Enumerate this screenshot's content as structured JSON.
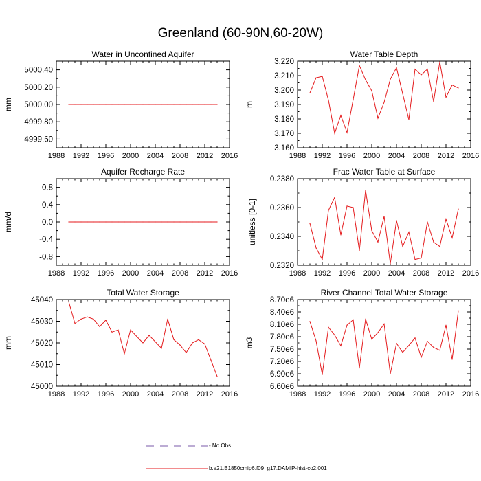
{
  "title": "Greenland (60-90N,60-20W)",
  "colors": {
    "series": "#e41a1c",
    "obs": "#7a5aa8",
    "axis": "#000000"
  },
  "legend": {
    "obs_label": "No Obs",
    "model_label": "b.e21.B1850cmip6.f09_g17.DAMIP-hist-co2.001"
  },
  "chart_data": [
    {
      "type": "line",
      "title": "Water in Unconfined Aquifer",
      "xlabel": "",
      "ylabel": "mm",
      "xlim": [
        1988,
        2016
      ],
      "ylim": [
        4999.5,
        5000.5
      ],
      "xticks": [
        1988,
        1992,
        1996,
        2000,
        2004,
        2008,
        2012,
        2016
      ],
      "yticks": [
        4999.6,
        4999.8,
        5000.0,
        5000.2,
        5000.4
      ],
      "ytick_labels": [
        "4999.60",
        "4999.80",
        "5000.00",
        "5000.20",
        "5000.40"
      ],
      "x": [
        1990,
        1991,
        1992,
        1993,
        1994,
        1995,
        1996,
        1997,
        1998,
        1999,
        2000,
        2001,
        2002,
        2003,
        2004,
        2005,
        2006,
        2007,
        2008,
        2009,
        2010,
        2011,
        2012,
        2013,
        2014
      ],
      "series": [
        {
          "values": [
            5000,
            5000,
            5000,
            5000,
            5000,
            5000,
            5000,
            5000,
            5000,
            5000,
            5000,
            5000,
            5000,
            5000,
            5000,
            5000,
            5000,
            5000,
            5000,
            5000,
            5000,
            5000,
            5000,
            5000,
            5000
          ]
        }
      ]
    },
    {
      "type": "line",
      "title": "Water Table Depth",
      "xlabel": "",
      "ylabel": "m",
      "xlim": [
        1988,
        2016
      ],
      "ylim": [
        3.16,
        3.22
      ],
      "xticks": [
        1988,
        1992,
        1996,
        2000,
        2004,
        2008,
        2012,
        2016
      ],
      "yticks": [
        3.16,
        3.17,
        3.18,
        3.19,
        3.2,
        3.21,
        3.22
      ],
      "ytick_labels": [
        "3.160",
        "3.170",
        "3.180",
        "3.190",
        "3.200",
        "3.210",
        "3.220"
      ],
      "x": [
        1990,
        1991,
        1992,
        1993,
        1994,
        1995,
        1996,
        1997,
        1998,
        1999,
        2000,
        2001,
        2002,
        2003,
        2004,
        2005,
        2006,
        2007,
        2008,
        2009,
        2010,
        2011,
        2012,
        2013,
        2014
      ],
      "series": [
        {
          "values": [
            3.198,
            3.2085,
            3.2095,
            3.193,
            3.17,
            3.1825,
            3.1705,
            3.1935,
            3.217,
            3.207,
            3.1995,
            3.1805,
            3.1915,
            3.2075,
            3.2155,
            3.1975,
            3.1795,
            3.2145,
            3.2105,
            3.2145,
            3.192,
            3.2195,
            3.195,
            3.2035,
            3.2015
          ]
        }
      ]
    },
    {
      "type": "line",
      "title": "Aquifer Recharge Rate",
      "xlabel": "",
      "ylabel": "mm/d",
      "xlim": [
        1988,
        2016
      ],
      "ylim": [
        -1.0,
        1.0
      ],
      "xticks": [
        1988,
        1992,
        1996,
        2000,
        2004,
        2008,
        2012,
        2016
      ],
      "yticks": [
        -0.8,
        -0.4,
        0.0,
        0.4,
        0.8
      ],
      "ytick_labels": [
        "-0.8",
        "-0.4",
        "0.0",
        "0.4",
        "0.8"
      ],
      "x": [
        1990,
        1991,
        1992,
        1993,
        1994,
        1995,
        1996,
        1997,
        1998,
        1999,
        2000,
        2001,
        2002,
        2003,
        2004,
        2005,
        2006,
        2007,
        2008,
        2009,
        2010,
        2011,
        2012,
        2013,
        2014
      ],
      "series": [
        {
          "values": [
            0,
            0,
            0,
            0,
            0,
            0,
            0,
            0,
            0,
            0,
            0,
            0,
            0,
            0,
            0,
            0,
            0,
            0,
            0,
            0,
            0,
            0,
            0,
            0,
            0
          ]
        }
      ]
    },
    {
      "type": "line",
      "title": "Frac Water Table at Surface",
      "xlabel": "",
      "ylabel": "unitless [0-1]",
      "xlim": [
        1988,
        2016
      ],
      "ylim": [
        0.232,
        0.238
      ],
      "xticks": [
        1988,
        1992,
        1996,
        2000,
        2004,
        2008,
        2012,
        2016
      ],
      "yticks": [
        0.232,
        0.234,
        0.236,
        0.238
      ],
      "ytick_labels": [
        "0.2320",
        "0.2340",
        "0.2360",
        "0.2380"
      ],
      "x": [
        1990,
        1991,
        1992,
        1993,
        1994,
        1995,
        1996,
        1997,
        1998,
        1999,
        2000,
        2001,
        2002,
        2003,
        2004,
        2005,
        2006,
        2007,
        2008,
        2009,
        2010,
        2011,
        2012,
        2013,
        2014
      ],
      "series": [
        {
          "values": [
            0.2349,
            0.2332,
            0.2324,
            0.2358,
            0.2367,
            0.2341,
            0.2361,
            0.236,
            0.233,
            0.2372,
            0.2344,
            0.2336,
            0.2354,
            0.2321,
            0.2351,
            0.2333,
            0.2343,
            0.2324,
            0.2325,
            0.235,
            0.2336,
            0.2333,
            0.2352,
            0.2339,
            0.2359
          ]
        }
      ]
    },
    {
      "type": "line",
      "title": "Total Water Storage",
      "xlabel": "",
      "ylabel": "mm",
      "xlim": [
        1988,
        2016
      ],
      "ylim": [
        45000,
        45040
      ],
      "xticks": [
        1988,
        1992,
        1996,
        2000,
        2004,
        2008,
        2012,
        2016
      ],
      "yticks": [
        45000,
        45010,
        45020,
        45030,
        45040
      ],
      "ytick_labels": [
        "45000",
        "45010",
        "45020",
        "45030",
        "45040"
      ],
      "x": [
        1990,
        1991,
        1992,
        1993,
        1994,
        1995,
        1996,
        1997,
        1998,
        1999,
        2000,
        2001,
        2002,
        2003,
        2004,
        2005,
        2006,
        2007,
        2008,
        2009,
        2010,
        2011,
        2012,
        2013,
        2014
      ],
      "series": [
        {
          "values": [
            45039,
            45029,
            45031,
            45032,
            45031,
            45027.5,
            45030.5,
            45025,
            45026,
            45015,
            45026,
            45023,
            45020,
            45023.5,
            45020.5,
            45017.5,
            45031,
            45021.5,
            45019,
            45015.5,
            45020,
            45021.5,
            45019.5,
            45012,
            45004.5
          ]
        }
      ]
    },
    {
      "type": "line",
      "title": "River Channel Total Water Storage",
      "xlabel": "",
      "ylabel": "m3",
      "xlim": [
        1988,
        2016
      ],
      "ylim": [
        6600000,
        8700000
      ],
      "xticks": [
        1988,
        1992,
        1996,
        2000,
        2004,
        2008,
        2012,
        2016
      ],
      "yticks": [
        6600000,
        6900000,
        7200000,
        7500000,
        7800000,
        8100000,
        8400000,
        8700000
      ],
      "ytick_labels": [
        "6.60e6",
        "6.90e6",
        "7.20e6",
        "7.50e6",
        "7.80e6",
        "8.10e6",
        "8.40e6",
        "8.70e6"
      ],
      "x": [
        1990,
        1991,
        1992,
        1993,
        1994,
        1995,
        1996,
        1997,
        1998,
        1999,
        2000,
        2001,
        2002,
        2003,
        2004,
        2005,
        2006,
        2007,
        2008,
        2009,
        2010,
        2011,
        2012,
        2013,
        2014
      ],
      "series": [
        {
          "values": [
            8170000,
            7700000,
            6880000,
            8030000,
            7840000,
            7580000,
            8080000,
            8210000,
            7040000,
            8230000,
            7740000,
            7900000,
            8110000,
            6900000,
            7640000,
            7420000,
            7590000,
            7770000,
            7300000,
            7690000,
            7540000,
            7470000,
            8080000,
            7250000,
            8430000
          ]
        }
      ]
    }
  ]
}
